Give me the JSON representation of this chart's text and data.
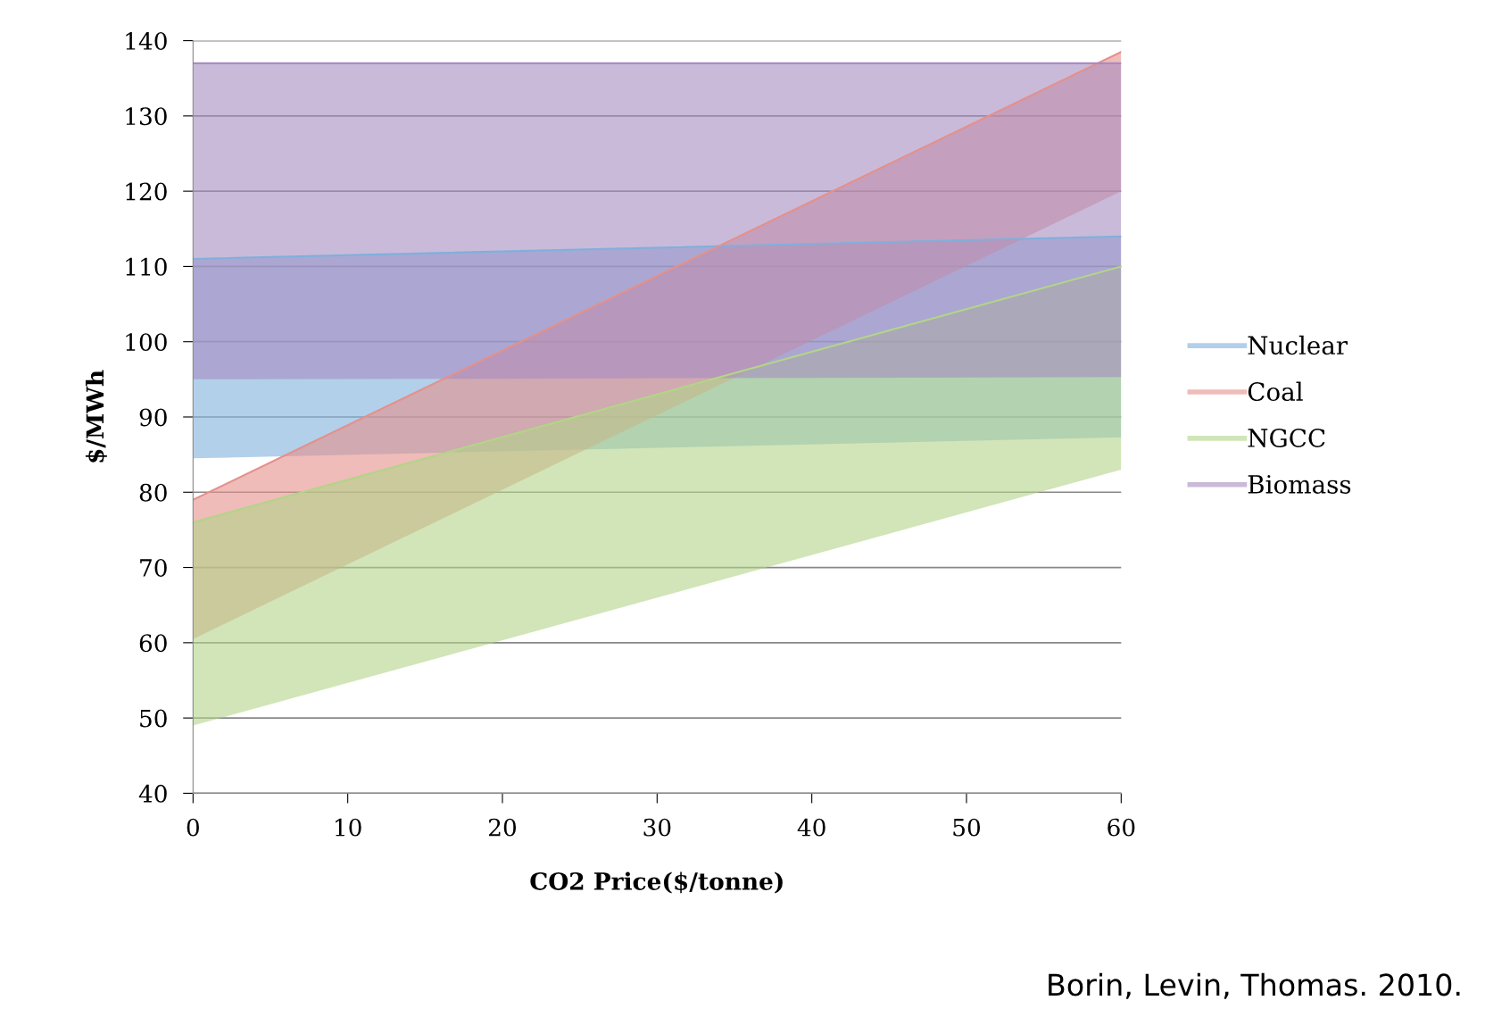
{
  "chart_data": {
    "type": "line",
    "x": [
      0,
      60
    ],
    "xlabel": "CO2 Price($/tonne)",
    "ylabel": "$/MWh",
    "xlim": [
      0,
      60
    ],
    "xticks": [
      0,
      10,
      20,
      30,
      40,
      50,
      60
    ],
    "ylim": [
      40,
      140
    ],
    "yticks": [
      40,
      50,
      60,
      70,
      80,
      90,
      100,
      110,
      120,
      130,
      140
    ],
    "grid": "y",
    "legend": "right",
    "annotations": [
      "Borin, Levin, Thomas. 2010."
    ],
    "series": [
      {
        "name": "Nuclear",
        "color": "#7fb0dc",
        "values": [
          111,
          114
        ],
        "lower": [
          84.5,
          87.3
        ],
        "upper": [
          111,
          114
        ]
      },
      {
        "name": "Coal",
        "color": "#e5908a",
        "values": [
          79,
          138.5
        ],
        "lower": [
          60.5,
          120
        ],
        "upper": [
          79,
          138.5
        ]
      },
      {
        "name": "NGCC",
        "color": "#b3d488",
        "values": [
          76,
          110
        ],
        "lower": [
          49,
          83
        ],
        "upper": [
          76,
          110
        ]
      },
      {
        "name": "Biomass",
        "color": "#a68cc2",
        "values": [
          137,
          137
        ],
        "lower": [
          95,
          95.3
        ],
        "upper": [
          137,
          137
        ]
      }
    ]
  }
}
